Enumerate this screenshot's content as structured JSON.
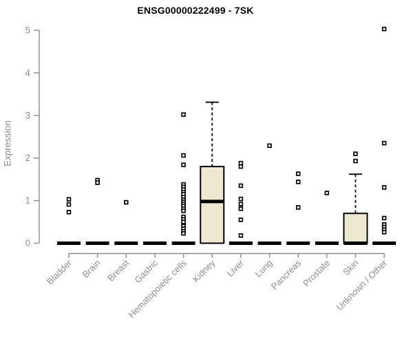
{
  "title": "ENSG00000222499 - 7SK",
  "y_axis_label": "Expression",
  "chart_data": {
    "type": "boxplot",
    "title": "ENSG00000222499 - 7SK",
    "xlabel": "",
    "ylabel": "Expression",
    "ylim": [
      0,
      5
    ],
    "y_ticks": [
      0,
      1,
      2,
      3,
      4,
      5
    ],
    "grid": false,
    "legend": "none",
    "categories": [
      "Bladder",
      "Brain",
      "Breast",
      "Gastric",
      "Hematopoietic cells",
      "Kidney",
      "Liver",
      "Lung",
      "Pancreas",
      "Prostate",
      "Skin",
      "Unknown / Other"
    ],
    "boxes": [
      {
        "category": "Bladder",
        "q1": 0,
        "median": 0,
        "q3": 0,
        "whisker_low": 0,
        "whisker_high": 0,
        "outliers": [
          1.03,
          0.91,
          0.73
        ]
      },
      {
        "category": "Brain",
        "q1": 0,
        "median": 0,
        "q3": 0,
        "whisker_low": 0,
        "whisker_high": 0,
        "outliers": [
          1.48,
          1.42
        ]
      },
      {
        "category": "Breast",
        "q1": 0,
        "median": 0,
        "q3": 0,
        "whisker_low": 0,
        "whisker_high": 0,
        "outliers": [
          0.96
        ]
      },
      {
        "category": "Gastric",
        "q1": 0,
        "median": 0,
        "q3": 0,
        "whisker_low": 0,
        "whisker_high": 0,
        "outliers": []
      },
      {
        "category": "Hematopoietic cells",
        "q1": 0,
        "median": 0,
        "q3": 0,
        "whisker_low": 0,
        "whisker_high": 0,
        "outliers": [
          3.02,
          2.06,
          1.84,
          1.38,
          1.32,
          1.26,
          1.2,
          1.15,
          1.08,
          1.02,
          0.97,
          0.92,
          0.87,
          0.81,
          0.76,
          0.62,
          0.56,
          0.5,
          0.4,
          0.34,
          0.28,
          0.23
        ]
      },
      {
        "category": "Kidney",
        "q1": 0,
        "median": 0.98,
        "q3": 1.8,
        "whisker_low": 0,
        "whisker_high": 3.31,
        "outliers": []
      },
      {
        "category": "Liver",
        "q1": 0,
        "median": 0,
        "q3": 0,
        "whisker_low": 0,
        "whisker_high": 0,
        "outliers": [
          1.88,
          1.8,
          1.35,
          1.04,
          0.92,
          0.81,
          0.55,
          0.18
        ]
      },
      {
        "category": "Lung",
        "q1": 0,
        "median": 0,
        "q3": 0,
        "whisker_low": 0,
        "whisker_high": 0,
        "outliers": [
          2.29
        ]
      },
      {
        "category": "Pancreas",
        "q1": 0,
        "median": 0,
        "q3": 0,
        "whisker_low": 0,
        "whisker_high": 0,
        "outliers": [
          1.63,
          1.44,
          0.84
        ]
      },
      {
        "category": "Prostate",
        "q1": 0,
        "median": 0,
        "q3": 0,
        "whisker_low": 0,
        "whisker_high": 0,
        "outliers": [
          1.18
        ]
      },
      {
        "category": "Skin",
        "q1": 0,
        "median": 0,
        "q3": 0.7,
        "whisker_low": 0,
        "whisker_high": 1.62,
        "outliers": [
          2.1,
          1.93
        ]
      },
      {
        "category": "Unknown / Other",
        "q1": 0,
        "median": 0,
        "q3": 0,
        "whisker_low": 0,
        "whisker_high": 0,
        "outliers": [
          5.03,
          2.35,
          1.31,
          0.59,
          0.44,
          0.38,
          0.32,
          0.26
        ]
      }
    ],
    "colors": {
      "box_fill": "#EDE8D0",
      "box_border": "#000000",
      "median": "#000000",
      "whisker": "#000000",
      "outlier": "#000000",
      "axis": "#8a8a8a",
      "tick_label": "#8e8e8e",
      "title": "#000000",
      "background": "#ffffff"
    }
  }
}
